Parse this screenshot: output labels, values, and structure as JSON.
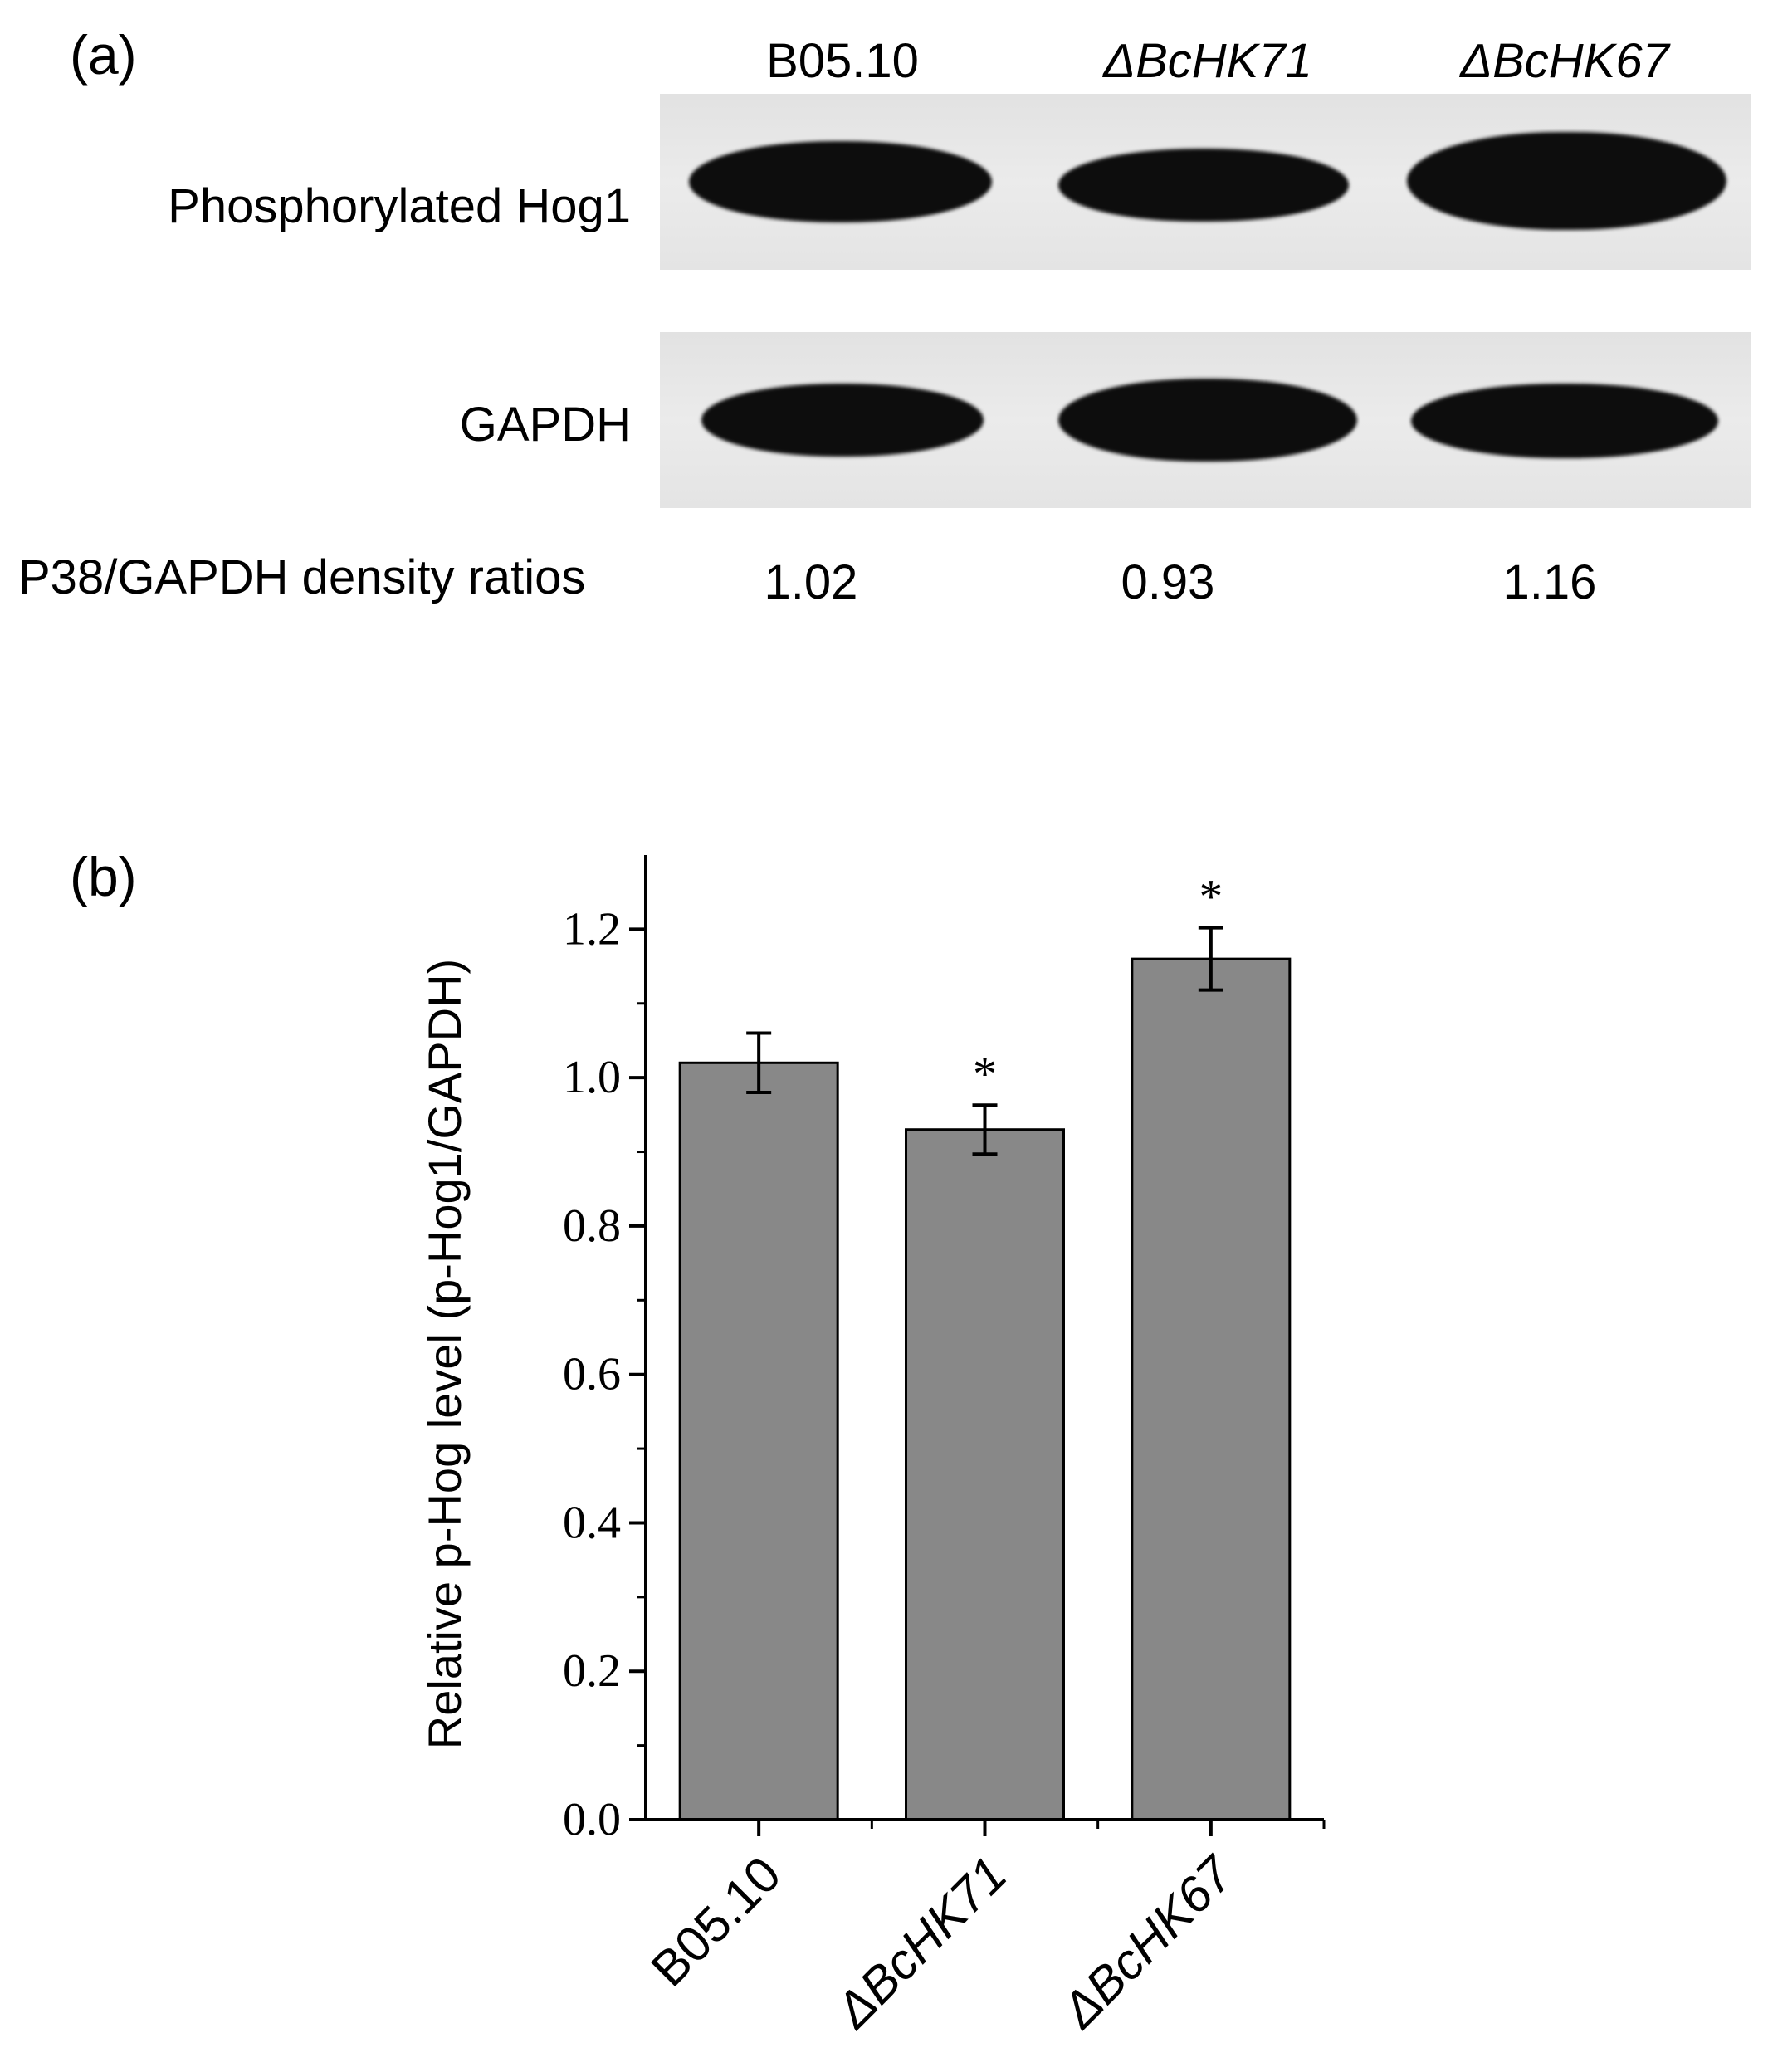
{
  "panel_a": {
    "label": "(a)",
    "lanes": [
      "B05.10",
      "ΔBcHK71",
      "ΔBcHK67"
    ],
    "rows": [
      {
        "label": "Phosphorylated Hog1"
      },
      {
        "label": "GAPDH"
      }
    ],
    "ratio_label": "P38/GAPDH density ratios",
    "ratios": [
      "1.02",
      "0.93",
      "1.16"
    ]
  },
  "panel_b": {
    "label": "(b)"
  },
  "chart_data": {
    "type": "bar",
    "categories": [
      "B05.10",
      "ΔBcHK71",
      "ΔBcHK67"
    ],
    "values": [
      1.02,
      0.93,
      1.16
    ],
    "errors": [
      0.04,
      0.033,
      0.042
    ],
    "significance": [
      "",
      "*",
      "*"
    ],
    "title": "",
    "xlabel": "",
    "ylabel": "Relative p-Hog level (p-Hog1/GAPDH)",
    "ylim": [
      0,
      1.3
    ],
    "yticks": [
      "0.0",
      "0.2",
      "0.4",
      "0.6",
      "0.8",
      "1.0",
      "1.2"
    ],
    "bar_color": "#888888",
    "grid": false
  }
}
